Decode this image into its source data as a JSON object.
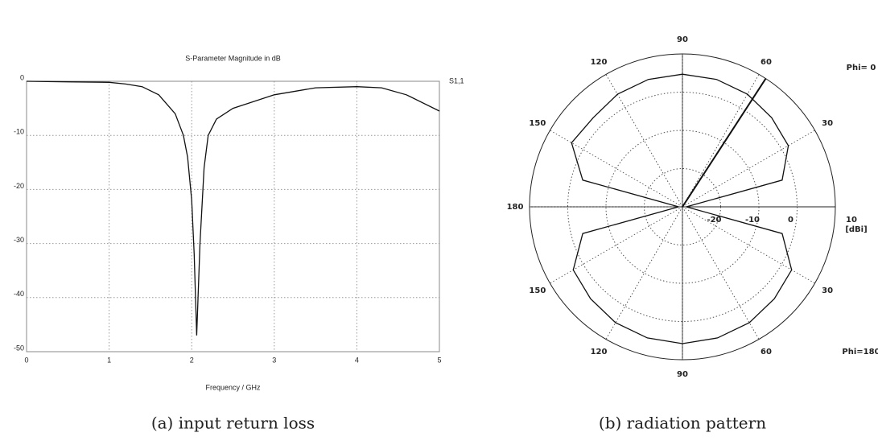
{
  "chart_data": [
    {
      "type": "line",
      "title": "S-Parameter Magnitude in dB",
      "x_label": "Frequency / GHz",
      "caption": "(a) input return loss",
      "x": [
        0,
        0.5,
        1,
        1.2,
        1.4,
        1.6,
        1.8,
        1.9,
        1.95,
        2.0,
        2.03,
        2.06,
        2.1,
        2.15,
        2.2,
        2.3,
        2.5,
        3,
        3.5,
        4,
        4.3,
        4.6,
        5
      ],
      "series": [
        {
          "name": "S1,1",
          "color": "#111111",
          "values": [
            0,
            -0.1,
            -0.2,
            -0.5,
            -1,
            -2.5,
            -6,
            -10,
            -14,
            -22,
            -32,
            -47,
            -30,
            -16,
            -10,
            -7,
            -5,
            -2.5,
            -1.2,
            -1,
            -1.2,
            -2.5,
            -5.5
          ]
        }
      ],
      "xlim": [
        0,
        5
      ],
      "xticks": [
        0,
        1,
        2,
        3,
        4,
        5
      ],
      "ylim": [
        -50,
        0
      ],
      "yticks": [
        0,
        -10,
        -20,
        -30,
        -40,
        -50
      ],
      "grid": true
    },
    {
      "type": "polar",
      "caption": "(b) radiation pattern",
      "r_label": "[dBi]",
      "rlim": [
        -30,
        10
      ],
      "rticks": [
        -20,
        -10,
        0,
        10
      ],
      "angle_ticks": [
        90,
        60,
        30,
        120,
        150,
        180,
        {
          "value": 210,
          "label": "150"
        },
        {
          "value": 240,
          "label": "120"
        },
        {
          "value": 270,
          "label": "90"
        },
        {
          "value": 300,
          "label": "60"
        },
        {
          "value": 330,
          "label": "30"
        }
      ],
      "main_lobe_direction": 57,
      "series": [
        {
          "name": "Phi= 0",
          "color": "#111111",
          "theta": [
            0,
            15,
            30,
            45,
            60,
            75,
            90,
            105,
            120,
            135,
            150,
            165,
            180
          ],
          "values": [
            -29,
            -3,
            2,
            3,
            4,
            4.5,
            4.7,
            4.5,
            4,
            3,
            3.5,
            -3,
            -29
          ]
        },
        {
          "name": "Phi=180",
          "color": "#111111",
          "theta": [
            180,
            195,
            210,
            225,
            240,
            255,
            270,
            285,
            300,
            315,
            330,
            345,
            360
          ],
          "values": [
            -29,
            -3,
            3,
            4,
            5,
            5.5,
            5.8,
            5.5,
            5,
            4,
            3,
            -3,
            -29
          ]
        }
      ]
    }
  ]
}
